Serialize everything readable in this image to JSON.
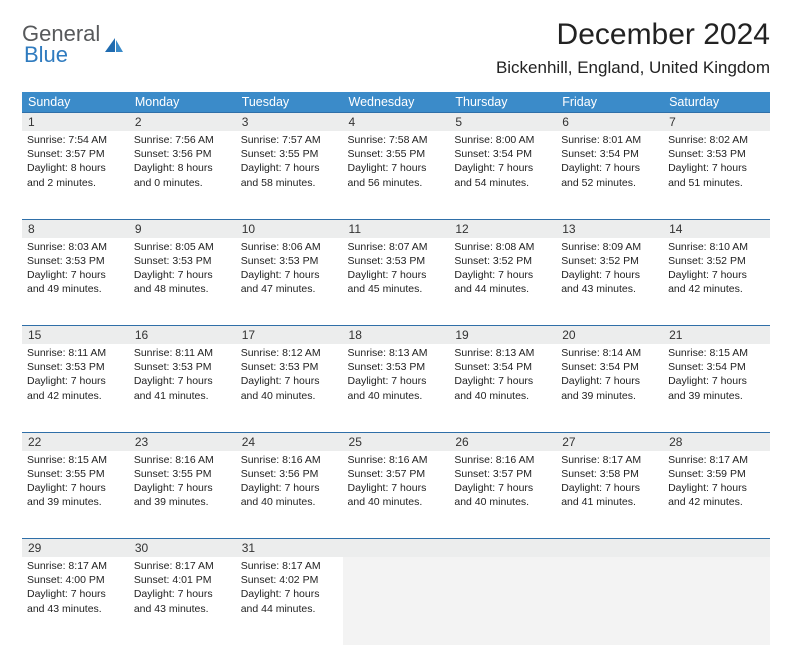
{
  "brand": {
    "general": "General",
    "blue": "Blue"
  },
  "title": "December 2024",
  "location": "Bickenhill, England, United Kingdom",
  "colors": {
    "header_bg": "#3b8bc9",
    "header_text": "#ffffff",
    "daynum_bg": "#eceded",
    "border": "#2f6fa8",
    "logo_gray": "#57595b",
    "logo_blue": "#2f7bbf"
  },
  "day_headers": [
    "Sunday",
    "Monday",
    "Tuesday",
    "Wednesday",
    "Thursday",
    "Friday",
    "Saturday"
  ],
  "weeks": [
    [
      {
        "n": "1",
        "sr": "Sunrise: 7:54 AM",
        "ss": "Sunset: 3:57 PM",
        "dl": "Daylight: 8 hours and 2 minutes."
      },
      {
        "n": "2",
        "sr": "Sunrise: 7:56 AM",
        "ss": "Sunset: 3:56 PM",
        "dl": "Daylight: 8 hours and 0 minutes."
      },
      {
        "n": "3",
        "sr": "Sunrise: 7:57 AM",
        "ss": "Sunset: 3:55 PM",
        "dl": "Daylight: 7 hours and 58 minutes."
      },
      {
        "n": "4",
        "sr": "Sunrise: 7:58 AM",
        "ss": "Sunset: 3:55 PM",
        "dl": "Daylight: 7 hours and 56 minutes."
      },
      {
        "n": "5",
        "sr": "Sunrise: 8:00 AM",
        "ss": "Sunset: 3:54 PM",
        "dl": "Daylight: 7 hours and 54 minutes."
      },
      {
        "n": "6",
        "sr": "Sunrise: 8:01 AM",
        "ss": "Sunset: 3:54 PM",
        "dl": "Daylight: 7 hours and 52 minutes."
      },
      {
        "n": "7",
        "sr": "Sunrise: 8:02 AM",
        "ss": "Sunset: 3:53 PM",
        "dl": "Daylight: 7 hours and 51 minutes."
      }
    ],
    [
      {
        "n": "8",
        "sr": "Sunrise: 8:03 AM",
        "ss": "Sunset: 3:53 PM",
        "dl": "Daylight: 7 hours and 49 minutes."
      },
      {
        "n": "9",
        "sr": "Sunrise: 8:05 AM",
        "ss": "Sunset: 3:53 PM",
        "dl": "Daylight: 7 hours and 48 minutes."
      },
      {
        "n": "10",
        "sr": "Sunrise: 8:06 AM",
        "ss": "Sunset: 3:53 PM",
        "dl": "Daylight: 7 hours and 47 minutes."
      },
      {
        "n": "11",
        "sr": "Sunrise: 8:07 AM",
        "ss": "Sunset: 3:53 PM",
        "dl": "Daylight: 7 hours and 45 minutes."
      },
      {
        "n": "12",
        "sr": "Sunrise: 8:08 AM",
        "ss": "Sunset: 3:52 PM",
        "dl": "Daylight: 7 hours and 44 minutes."
      },
      {
        "n": "13",
        "sr": "Sunrise: 8:09 AM",
        "ss": "Sunset: 3:52 PM",
        "dl": "Daylight: 7 hours and 43 minutes."
      },
      {
        "n": "14",
        "sr": "Sunrise: 8:10 AM",
        "ss": "Sunset: 3:52 PM",
        "dl": "Daylight: 7 hours and 42 minutes."
      }
    ],
    [
      {
        "n": "15",
        "sr": "Sunrise: 8:11 AM",
        "ss": "Sunset: 3:53 PM",
        "dl": "Daylight: 7 hours and 42 minutes."
      },
      {
        "n": "16",
        "sr": "Sunrise: 8:11 AM",
        "ss": "Sunset: 3:53 PM",
        "dl": "Daylight: 7 hours and 41 minutes."
      },
      {
        "n": "17",
        "sr": "Sunrise: 8:12 AM",
        "ss": "Sunset: 3:53 PM",
        "dl": "Daylight: 7 hours and 40 minutes."
      },
      {
        "n": "18",
        "sr": "Sunrise: 8:13 AM",
        "ss": "Sunset: 3:53 PM",
        "dl": "Daylight: 7 hours and 40 minutes."
      },
      {
        "n": "19",
        "sr": "Sunrise: 8:13 AM",
        "ss": "Sunset: 3:54 PM",
        "dl": "Daylight: 7 hours and 40 minutes."
      },
      {
        "n": "20",
        "sr": "Sunrise: 8:14 AM",
        "ss": "Sunset: 3:54 PM",
        "dl": "Daylight: 7 hours and 39 minutes."
      },
      {
        "n": "21",
        "sr": "Sunrise: 8:15 AM",
        "ss": "Sunset: 3:54 PM",
        "dl": "Daylight: 7 hours and 39 minutes."
      }
    ],
    [
      {
        "n": "22",
        "sr": "Sunrise: 8:15 AM",
        "ss": "Sunset: 3:55 PM",
        "dl": "Daylight: 7 hours and 39 minutes."
      },
      {
        "n": "23",
        "sr": "Sunrise: 8:16 AM",
        "ss": "Sunset: 3:55 PM",
        "dl": "Daylight: 7 hours and 39 minutes."
      },
      {
        "n": "24",
        "sr": "Sunrise: 8:16 AM",
        "ss": "Sunset: 3:56 PM",
        "dl": "Daylight: 7 hours and 40 minutes."
      },
      {
        "n": "25",
        "sr": "Sunrise: 8:16 AM",
        "ss": "Sunset: 3:57 PM",
        "dl": "Daylight: 7 hours and 40 minutes."
      },
      {
        "n": "26",
        "sr": "Sunrise: 8:16 AM",
        "ss": "Sunset: 3:57 PM",
        "dl": "Daylight: 7 hours and 40 minutes."
      },
      {
        "n": "27",
        "sr": "Sunrise: 8:17 AM",
        "ss": "Sunset: 3:58 PM",
        "dl": "Daylight: 7 hours and 41 minutes."
      },
      {
        "n": "28",
        "sr": "Sunrise: 8:17 AM",
        "ss": "Sunset: 3:59 PM",
        "dl": "Daylight: 7 hours and 42 minutes."
      }
    ],
    [
      {
        "n": "29",
        "sr": "Sunrise: 8:17 AM",
        "ss": "Sunset: 4:00 PM",
        "dl": "Daylight: 7 hours and 43 minutes."
      },
      {
        "n": "30",
        "sr": "Sunrise: 8:17 AM",
        "ss": "Sunset: 4:01 PM",
        "dl": "Daylight: 7 hours and 43 minutes."
      },
      {
        "n": "31",
        "sr": "Sunrise: 8:17 AM",
        "ss": "Sunset: 4:02 PM",
        "dl": "Daylight: 7 hours and 44 minutes."
      },
      null,
      null,
      null,
      null
    ]
  ]
}
